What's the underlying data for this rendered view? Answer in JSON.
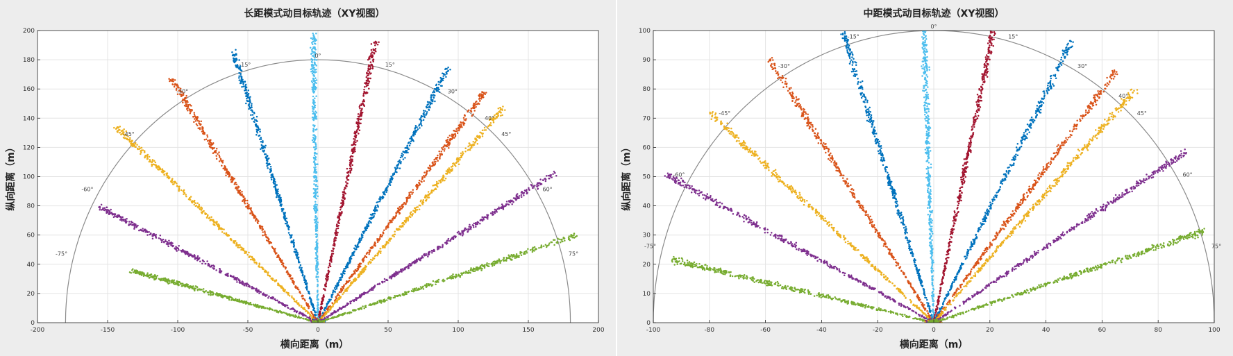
{
  "chart_data": [
    {
      "type": "scatter",
      "title": "长距模式动目标轨迹（XY视图）",
      "xlabel": "横向距离（m）",
      "ylabel": "纵向距离（m）",
      "xlim": [
        -200,
        200
      ],
      "ylim": [
        0,
        200
      ],
      "xticks": [
        -200,
        -150,
        -100,
        -50,
        0,
        50,
        100,
        150,
        200
      ],
      "yticks": [
        0,
        20,
        40,
        60,
        80,
        100,
        120,
        140,
        160,
        180,
        200
      ],
      "grid": true,
      "reference_arc_radius": 180,
      "angle_labels": [
        {
          "text": "-75°",
          "angle": -75
        },
        {
          "text": "-60°",
          "angle": -60
        },
        {
          "text": "-45°",
          "angle": -45
        },
        {
          "text": "-30°",
          "angle": -30
        },
        {
          "text": "-15°",
          "angle": -15
        },
        {
          "text": "0°",
          "angle": 0
        },
        {
          "text": "15°",
          "angle": 15
        },
        {
          "text": "30°",
          "angle": 30
        },
        {
          "text": "40°",
          "angle": 40
        },
        {
          "text": "45°",
          "angle": 45
        },
        {
          "text": "60°",
          "angle": 60
        },
        {
          "text": "75°",
          "angle": 75
        }
      ],
      "series": [
        {
          "angle": -75,
          "max_range": 138,
          "color": "#77ac30"
        },
        {
          "angle": -63,
          "max_range": 175,
          "color": "#7e2f8e"
        },
        {
          "angle": -47,
          "max_range": 198,
          "color": "#edb120"
        },
        {
          "angle": -32,
          "max_range": 198,
          "color": "#d95319"
        },
        {
          "angle": -18,
          "max_range": 196,
          "color": "#0072bd"
        },
        {
          "angle": -1,
          "max_range": 198,
          "color": "#4dbeee"
        },
        {
          "angle": 12,
          "max_range": 198,
          "color": "#a2142f"
        },
        {
          "angle": 28,
          "max_range": 198,
          "color": "#0072bd"
        },
        {
          "angle": 37,
          "max_range": 198,
          "color": "#d95319"
        },
        {
          "angle": 42,
          "max_range": 198,
          "color": "#edb120"
        },
        {
          "angle": 59,
          "max_range": 198,
          "color": "#7e2f8e"
        },
        {
          "angle": 72,
          "max_range": 194,
          "color": "#77ac30"
        }
      ]
    },
    {
      "type": "scatter",
      "title": "中距模式动目标轨迹（XY视图）",
      "xlabel": "横向距离（m）",
      "ylabel": "纵向距离（m）",
      "xlim": [
        -100,
        100
      ],
      "ylim": [
        0,
        100
      ],
      "xticks": [
        -100,
        -80,
        -60,
        -40,
        -20,
        0,
        20,
        40,
        60,
        80,
        100
      ],
      "yticks": [
        0,
        10,
        20,
        30,
        40,
        50,
        60,
        70,
        80,
        90,
        100
      ],
      "grid": true,
      "reference_arc_radius": 100,
      "angle_labels": [
        {
          "text": "-75°",
          "angle": -75
        },
        {
          "text": "-60°",
          "angle": -60
        },
        {
          "text": "-45°",
          "angle": -45
        },
        {
          "text": "-30°",
          "angle": -30
        },
        {
          "text": "-15°",
          "angle": -15
        },
        {
          "text": "0°",
          "angle": 0
        },
        {
          "text": "15°",
          "angle": 15
        },
        {
          "text": "30°",
          "angle": 30
        },
        {
          "text": "40°",
          "angle": 40
        },
        {
          "text": "45°",
          "angle": 45
        },
        {
          "text": "60°",
          "angle": 60
        },
        {
          "text": "75°",
          "angle": 75
        }
      ],
      "series": [
        {
          "angle": -77,
          "max_range": 96,
          "color": "#77ac30"
        },
        {
          "angle": -62,
          "max_range": 108,
          "color": "#7e2f8e"
        },
        {
          "angle": -48,
          "max_range": 108,
          "color": "#edb120"
        },
        {
          "angle": -33,
          "max_range": 108,
          "color": "#d95319"
        },
        {
          "angle": -18,
          "max_range": 105,
          "color": "#0072bd"
        },
        {
          "angle": -2,
          "max_range": 100,
          "color": "#4dbeee"
        },
        {
          "angle": 12,
          "max_range": 102,
          "color": "#a2142f"
        },
        {
          "angle": 27,
          "max_range": 108,
          "color": "#0072bd"
        },
        {
          "angle": 37,
          "max_range": 108,
          "color": "#d95319"
        },
        {
          "angle": 42,
          "max_range": 108,
          "color": "#edb120"
        },
        {
          "angle": 57,
          "max_range": 108,
          "color": "#7e2f8e"
        },
        {
          "angle": 72,
          "max_range": 102,
          "color": "#77ac30"
        }
      ]
    }
  ]
}
